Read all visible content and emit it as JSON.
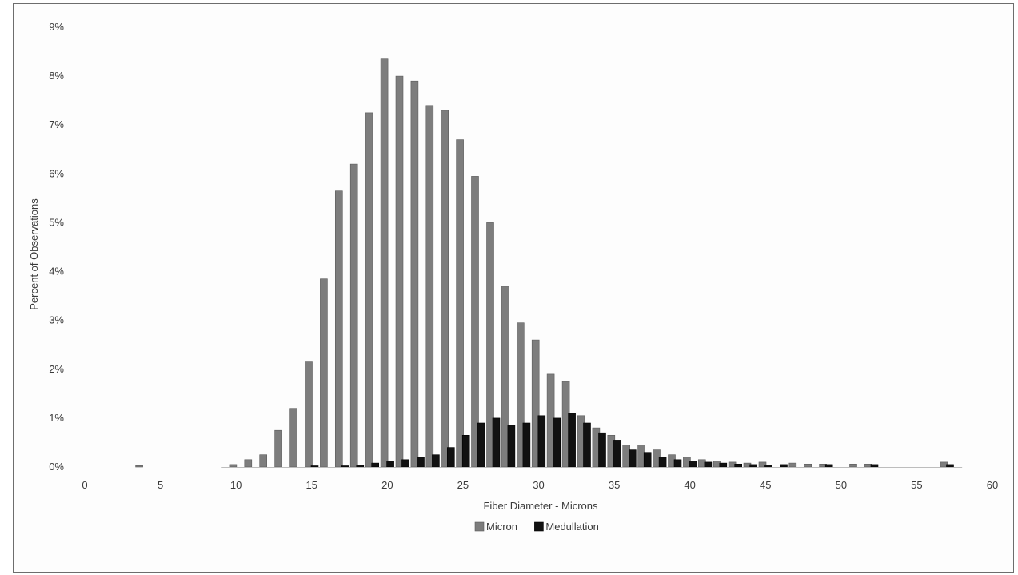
{
  "chart_data": {
    "type": "bar",
    "title": "",
    "xlabel": "Fiber Diameter - Microns",
    "ylabel": "Percent of Observations",
    "xlim": [
      0,
      60
    ],
    "ylim": [
      0,
      9
    ],
    "x_ticks": [
      "0",
      "5",
      "10",
      "15",
      "20",
      "25",
      "30",
      "35",
      "40",
      "45",
      "50",
      "55",
      "60"
    ],
    "y_ticks": [
      "0%",
      "1%",
      "2%",
      "3%",
      "4%",
      "5%",
      "6%",
      "7%",
      "8%",
      "9%"
    ],
    "grid": false,
    "legend_position": "bottom",
    "series": [
      {
        "name": "Micron",
        "color": "#7d7d7d",
        "points": [
          [
            3.6,
            0.03
          ],
          [
            9.8,
            0.05
          ],
          [
            10.8,
            0.15
          ],
          [
            11.8,
            0.25
          ],
          [
            12.8,
            0.75
          ],
          [
            13.8,
            1.2
          ],
          [
            14.8,
            2.15
          ],
          [
            15.8,
            3.85
          ],
          [
            16.8,
            5.65
          ],
          [
            17.8,
            6.2
          ],
          [
            18.8,
            7.25
          ],
          [
            19.8,
            8.35
          ],
          [
            20.8,
            8.0
          ],
          [
            21.8,
            7.9
          ],
          [
            22.8,
            7.4
          ],
          [
            23.8,
            7.3
          ],
          [
            24.8,
            6.7
          ],
          [
            25.8,
            5.95
          ],
          [
            26.8,
            5.0
          ],
          [
            27.8,
            3.7
          ],
          [
            28.8,
            2.95
          ],
          [
            29.8,
            2.6
          ],
          [
            30.8,
            1.9
          ],
          [
            31.8,
            1.75
          ],
          [
            32.8,
            1.05
          ],
          [
            33.8,
            0.8
          ],
          [
            34.8,
            0.65
          ],
          [
            35.8,
            0.45
          ],
          [
            36.8,
            0.45
          ],
          [
            37.8,
            0.35
          ],
          [
            38.8,
            0.25
          ],
          [
            39.8,
            0.2
          ],
          [
            40.8,
            0.15
          ],
          [
            41.8,
            0.12
          ],
          [
            42.8,
            0.1
          ],
          [
            43.8,
            0.08
          ],
          [
            44.8,
            0.1
          ],
          [
            46.8,
            0.08
          ],
          [
            47.8,
            0.06
          ],
          [
            48.8,
            0.06
          ],
          [
            50.8,
            0.06
          ],
          [
            51.8,
            0.06
          ],
          [
            56.8,
            0.1
          ]
        ]
      },
      {
        "name": "Medullation",
        "color": "#111111",
        "points": [
          [
            15.2,
            0.01
          ],
          [
            17.2,
            0.02
          ],
          [
            18.2,
            0.04
          ],
          [
            19.2,
            0.08
          ],
          [
            20.2,
            0.12
          ],
          [
            21.2,
            0.15
          ],
          [
            22.2,
            0.2
          ],
          [
            23.2,
            0.25
          ],
          [
            24.2,
            0.4
          ],
          [
            25.2,
            0.65
          ],
          [
            26.2,
            0.9
          ],
          [
            27.2,
            1.0
          ],
          [
            28.2,
            0.85
          ],
          [
            29.2,
            0.9
          ],
          [
            30.2,
            1.05
          ],
          [
            31.2,
            1.0
          ],
          [
            32.2,
            1.1
          ],
          [
            33.2,
            0.9
          ],
          [
            34.2,
            0.7
          ],
          [
            35.2,
            0.55
          ],
          [
            36.2,
            0.35
          ],
          [
            37.2,
            0.3
          ],
          [
            38.2,
            0.2
          ],
          [
            39.2,
            0.15
          ],
          [
            40.2,
            0.12
          ],
          [
            41.2,
            0.1
          ],
          [
            42.2,
            0.08
          ],
          [
            43.2,
            0.06
          ],
          [
            44.2,
            0.05
          ],
          [
            45.2,
            0.04
          ],
          [
            46.2,
            0.05
          ],
          [
            49.2,
            0.05
          ],
          [
            52.2,
            0.05
          ],
          [
            57.2,
            0.05
          ]
        ]
      }
    ]
  }
}
